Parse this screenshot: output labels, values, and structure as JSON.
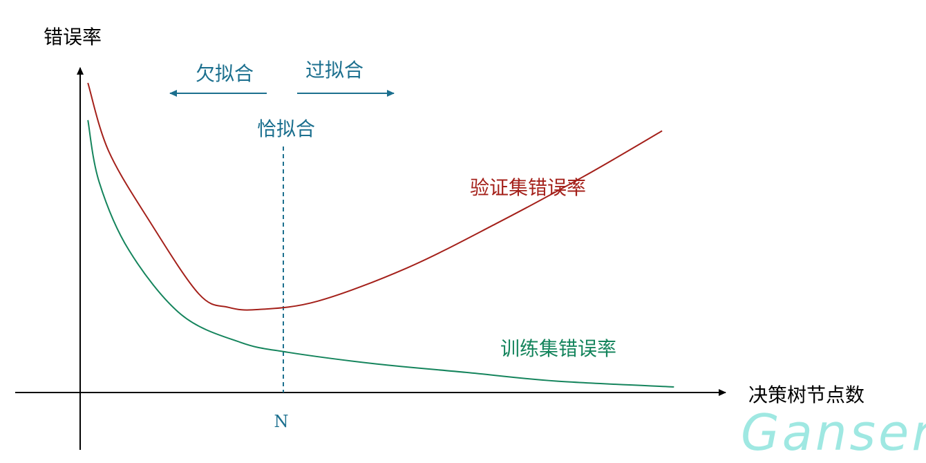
{
  "chart_data": {
    "type": "line",
    "ylabel": "错误率",
    "xlabel": "决策树节点数",
    "x_tick_label": "N",
    "x_marker": 30,
    "xlim": [
      0,
      100
    ],
    "ylim": [
      0,
      100
    ],
    "annotations": {
      "underfit": "欠拟合",
      "overfit": "过拟合",
      "goodfit": "恰拟合"
    },
    "series": [
      {
        "name": "验证集错误率",
        "color": "#a4201a",
        "x": [
          1.3,
          4.8,
          11.8,
          20,
          25,
          30,
          40,
          55,
          70,
          85,
          98
        ],
        "y": [
          100,
          78,
          55,
          31.8,
          27.5,
          26.8,
          29.5,
          40.2,
          54.5,
          70,
          84.5
        ]
      },
      {
        "name": "训练集错误率",
        "color": "#14845c",
        "x": [
          1.3,
          3.2,
          8.2,
          17,
          27,
          35,
          50,
          65,
          80,
          100
        ],
        "y": [
          88,
          68,
          46,
          25.2,
          16.2,
          13,
          9.2,
          6.5,
          3.7,
          1.8
        ]
      }
    ]
  },
  "watermark": "Ganser"
}
